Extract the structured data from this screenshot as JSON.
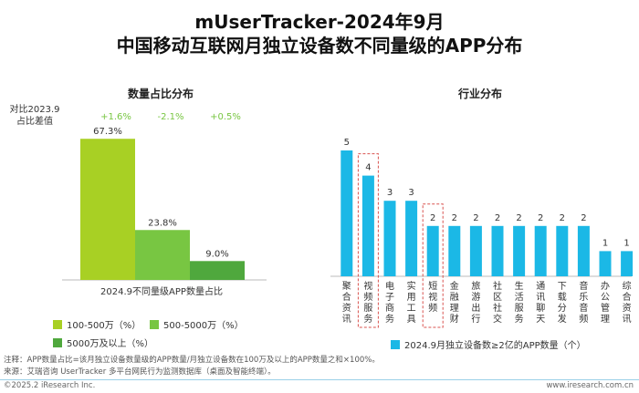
{
  "title_line1": "mUserTracker-2024年9月",
  "title_line2": "中国移动互联网月独立设备数不同量级的APP分布",
  "left_chart_title": "数量占比分布",
  "right_chart_title": "行业分布",
  "compare_label_line1": "对比2023.9",
  "compare_label_line2": "占比差值",
  "note_line": "注释：APP数量占比=该月独立设备数量级的APP数量/月独立设备数在100万及以上的APP数量之和×100%。",
  "source_line": "来源：艾瑞咨询 UserTracker 多平台网民行为监测数据库（桌面及智能终端）。",
  "copyright": "©2025.2 iResearch Inc.",
  "website": "www.iresearch.com.cn",
  "colors": {
    "green_light": "#a8d024",
    "green_mid": "#78c642",
    "green_dark": "#4fa83d",
    "cyan": "#1bb8e6",
    "highlight_border": "#d9534f"
  },
  "chart_data": [
    {
      "type": "bar",
      "title": "数量占比分布",
      "xlabel": "2024.9不同量级APP数量占比",
      "categories": [
        "100-500万（%）",
        "500-5000万（%）",
        "5000万及以上（%）"
      ],
      "values": [
        67.3,
        23.8,
        9.0
      ],
      "value_labels": [
        "67.3%",
        "23.8%",
        "9.0%"
      ],
      "diff_vs_2023_9": [
        "+1.6%",
        "-2.1%",
        "+0.5%"
      ],
      "ylim": [
        0,
        70
      ]
    },
    {
      "type": "bar",
      "title": "行业分布",
      "legend": "2024.9月独立设备数≥2亿的APP数量（个）",
      "categories": [
        "聚合资讯",
        "视频服务",
        "电子商务",
        "实用工具",
        "短视频",
        "金融理财",
        "旅游出行",
        "社区社交",
        "生活服务",
        "通讯聊天",
        "下载分发",
        "音乐音频",
        "办公管理",
        "综合资讯"
      ],
      "values": [
        5,
        4,
        3,
        3,
        2,
        2,
        2,
        2,
        2,
        2,
        2,
        2,
        1,
        1
      ],
      "highlighted": [
        "视频服务",
        "短视频"
      ],
      "ylim": [
        0,
        5
      ]
    }
  ]
}
